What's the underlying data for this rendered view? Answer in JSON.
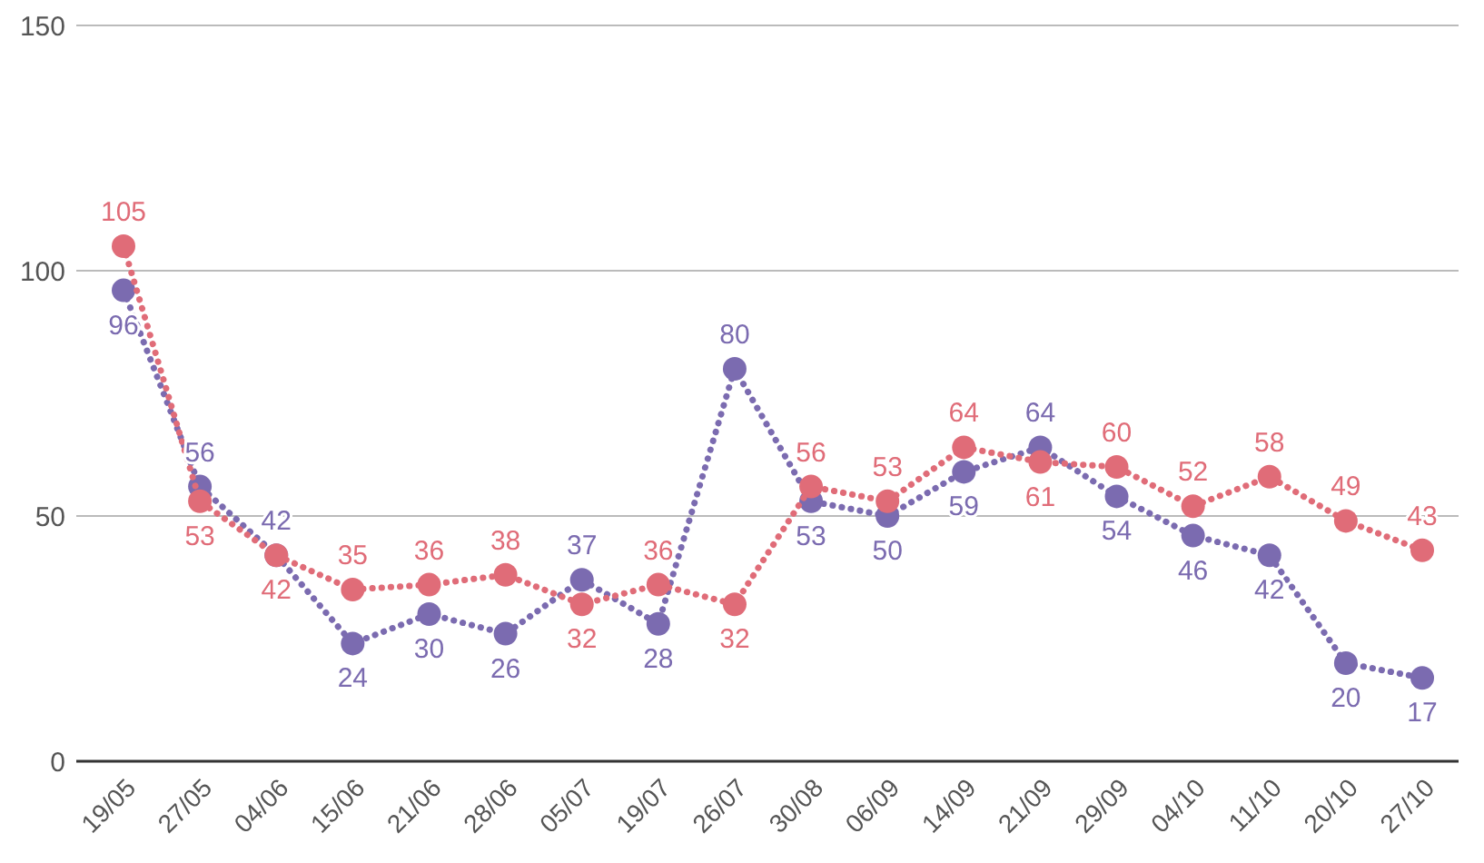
{
  "chart_data": {
    "type": "line",
    "categories": [
      "19/05",
      "27/05",
      "04/06",
      "15/06",
      "21/06",
      "28/06",
      "05/07",
      "19/07",
      "26/07",
      "30/08",
      "06/09",
      "14/09",
      "21/09",
      "29/09",
      "04/10",
      "11/10",
      "20/10",
      "27/10"
    ],
    "series": [
      {
        "color": "#7b6bb0",
        "values": [
          96,
          56,
          42,
          24,
          30,
          26,
          37,
          28,
          80,
          53,
          50,
          59,
          64,
          54,
          46,
          42,
          20,
          17
        ]
      },
      {
        "color": "#e06c78",
        "values": [
          105,
          53,
          42,
          35,
          36,
          38,
          32,
          36,
          32,
          56,
          53,
          64,
          61,
          60,
          52,
          58,
          49,
          43
        ]
      }
    ],
    "ylim": [
      0,
      150
    ],
    "yticks": [
      0,
      50,
      100,
      150
    ],
    "grid": "y",
    "marker": "circle",
    "line_style": "dotted",
    "data_labels": true
  }
}
